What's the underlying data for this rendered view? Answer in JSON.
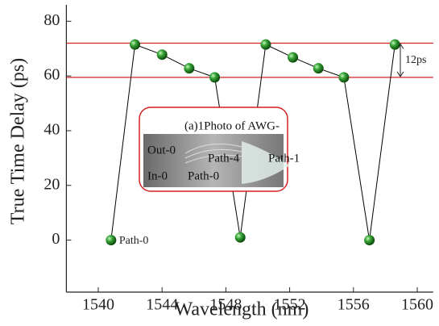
{
  "chart_data": {
    "type": "line",
    "x_label": "Wavelength (nm)",
    "y_label": "True Time Delay (ps)",
    "xlim": [
      1538,
      1561
    ],
    "ylim": [
      -19,
      86
    ],
    "xticks": [
      1540,
      1544,
      1548,
      1552,
      1556,
      1560
    ],
    "yticks": [
      0,
      20,
      40,
      60,
      80
    ],
    "series": [
      {
        "color": "#000000",
        "marker_color": "#2e9e2e",
        "x": [
          1540.8,
          1542.3,
          1544.0,
          1545.7,
          1547.3,
          1548.9,
          1550.5,
          1552.2,
          1553.8,
          1555.4,
          1557.0,
          1558.6
        ],
        "values": [
          0,
          71.5,
          67.8,
          62.8,
          59.5,
          1,
          71.5,
          66.8,
          62.8,
          59.5,
          0,
          71.5
        ]
      }
    ],
    "hlines": [
      {
        "value": 72,
        "color": "#d42020"
      },
      {
        "value": 59.5,
        "color": "#d42020"
      }
    ],
    "annotations": [
      {
        "text": "12ps"
      },
      {
        "text": "Path-0"
      }
    ],
    "inset": {
      "title": "(a)1Photo of AWG-",
      "labels": [
        "Out-0",
        "Path-4",
        "Path-1",
        "In-0",
        "Path-0"
      ]
    }
  }
}
